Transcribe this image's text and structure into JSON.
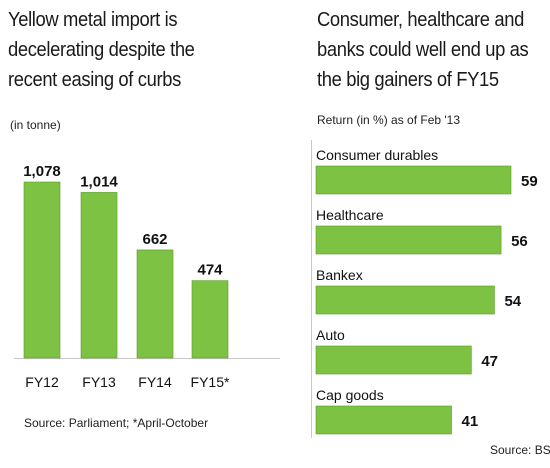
{
  "colors": {
    "bar_fill": "#7dc242",
    "bar_stroke": "#5a9a2a",
    "text": "#1a1a1a",
    "axis": "#c8c8c8"
  },
  "left": {
    "title_lines": [
      "Yellow metal import is",
      "decelerating despite the",
      "recent easing of curbs"
    ],
    "subtitle": "(in tonne)",
    "source": "Source: Parliament; *April-October"
  },
  "right": {
    "title_lines": [
      "Consumer, healthcare and",
      "banks could well end up as",
      "the big gainers of FY15"
    ],
    "subtitle": "Return (in %) as of Feb '13",
    "source": "Source: BSE"
  },
  "chart_data": [
    {
      "type": "bar",
      "orientation": "vertical",
      "title": "Yellow metal import is decelerating despite the recent easing of curbs",
      "ylabel": "(in tonne)",
      "categories": [
        "FY12",
        "FY13",
        "FY14",
        "FY15*"
      ],
      "values": [
        1078,
        1014,
        662,
        474
      ],
      "value_labels": [
        "1,078",
        "1,014",
        "662",
        "474"
      ],
      "ylim": [
        0,
        1078
      ],
      "grid": false,
      "legend": "none"
    },
    {
      "type": "bar",
      "orientation": "horizontal",
      "title": "Consumer, healthcare and banks could well end up as the big gainers of FY15",
      "xlabel": "Return (in %) as of Feb '13",
      "categories": [
        "Consumer durables",
        "Healthcare",
        "Bankex",
        "Auto",
        "Cap goods"
      ],
      "values": [
        59,
        56,
        54,
        47,
        41
      ],
      "value_labels": [
        "59",
        "56",
        "54",
        "47",
        "41"
      ],
      "xlim": [
        0,
        59
      ],
      "grid": false,
      "legend": "none"
    }
  ]
}
